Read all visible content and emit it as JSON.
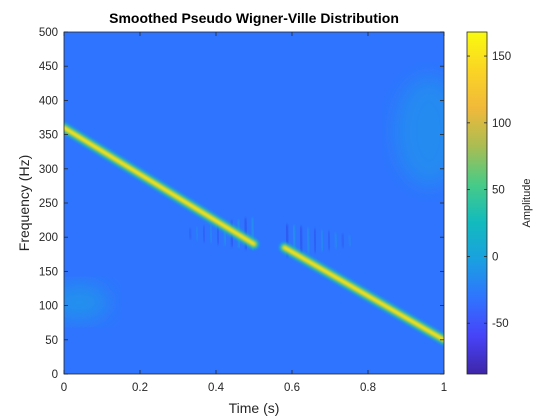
{
  "chart_data": {
    "type": "heatmap",
    "title": "Smoothed Pseudo Wigner-Ville Distribution",
    "xlabel": "Time (s)",
    "ylabel": "Frequency (Hz)",
    "xlim": [
      0,
      1
    ],
    "ylim": [
      0,
      500
    ],
    "x_ticks": [
      0,
      0.2,
      0.4,
      0.6,
      0.8,
      1
    ],
    "x_tick_labels": [
      "0",
      "0.2",
      "0.4",
      "0.6",
      "0.8",
      "1"
    ],
    "y_ticks": [
      0,
      50,
      100,
      150,
      200,
      250,
      300,
      350,
      400,
      450,
      500
    ],
    "y_tick_labels": [
      "0",
      "50",
      "100",
      "150",
      "200",
      "250",
      "300",
      "350",
      "400",
      "450",
      "500"
    ],
    "background_amplitude": 0,
    "components": [
      {
        "start": [
          0.0,
          360
        ],
        "end": [
          0.5,
          190
        ],
        "peak_amplitude": 165
      },
      {
        "start": [
          0.58,
          185
        ],
        "end": [
          1.0,
          50
        ],
        "peak_amplitude": 165
      }
    ],
    "interference_region": {
      "time_range": [
        0.33,
        0.75
      ],
      "frequency_range": [
        175,
        225
      ]
    },
    "colorbar": {
      "label": "Amplitude",
      "range": [
        -88,
        168
      ],
      "ticks": [
        -50,
        0,
        50,
        100,
        150
      ],
      "tick_labels": [
        "-50",
        "0",
        "50",
        "100",
        "150"
      ],
      "colormap": "parula",
      "colors": [
        "#3e26a8",
        "#4743f8",
        "#2f74ff",
        "#1aa0e0",
        "#12bbbd",
        "#48cb86",
        "#aabd52",
        "#f1b93a",
        "#fad524",
        "#f9fb0e"
      ]
    }
  }
}
